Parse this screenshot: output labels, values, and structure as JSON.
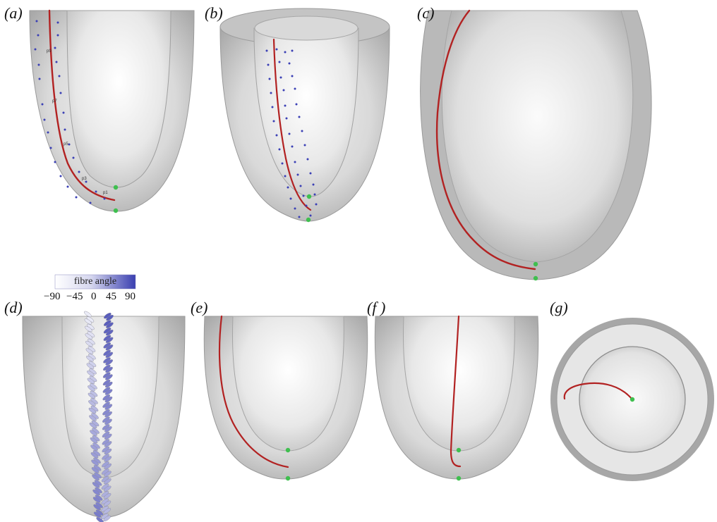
{
  "panels": [
    {
      "id": "a",
      "label": "(a)"
    },
    {
      "id": "b",
      "label": "(b)"
    },
    {
      "id": "c",
      "label": "(c)"
    },
    {
      "id": "d",
      "label": "(d)"
    },
    {
      "id": "e",
      "label": "(e)"
    },
    {
      "id": "f",
      "label": "(f )"
    },
    {
      "id": "g",
      "label": "(g)"
    }
  ],
  "point_labels": [
    "p9",
    "p7",
    "p5",
    "p3",
    "p1"
  ],
  "colorbar": {
    "title": "fibre angle",
    "ticks": [
      "−90",
      "−45",
      "0",
      "45",
      "90"
    ],
    "color_low": "#ffffff",
    "color_high": "#3a3fb0"
  },
  "colors": {
    "fibre_curve": "#b22222",
    "apex_marker": "#3fbf4f",
    "sample_points": "#3a3fb5",
    "wall_shade": "#bdbdbd"
  }
}
